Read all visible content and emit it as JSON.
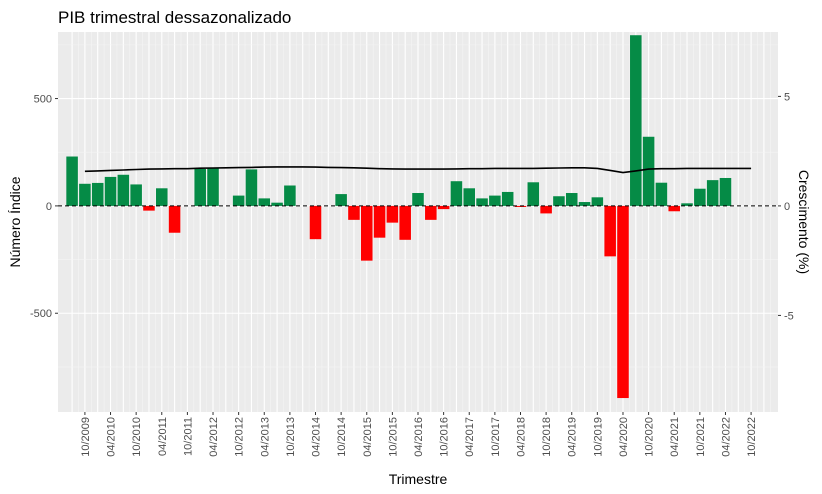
{
  "chart_data": {
    "type": "bar",
    "title": "PIB trimestral dessazonalizado",
    "xlabel": "Trimestre",
    "ylabel": "Número Índice",
    "ylabel_right": "Crescimento (%)",
    "ylim": [
      -960,
      810
    ],
    "ylim_right": [
      -9.41,
      7.94
    ],
    "yticks": [
      -500,
      0,
      500
    ],
    "yticks_right": [
      -5,
      0,
      5
    ],
    "grid": true,
    "legend": "none",
    "x": [
      "2009-Q3",
      "2009-Q4",
      "2010-Q1",
      "2010-Q2",
      "2010-Q3",
      "2010-Q4",
      "2011-Q1",
      "2011-Q2",
      "2011-Q3",
      "2011-Q4",
      "2012-Q1",
      "2012-Q2",
      "2012-Q3",
      "2012-Q4",
      "2013-Q1",
      "2013-Q2",
      "2013-Q3",
      "2013-Q4",
      "2014-Q1",
      "2014-Q2",
      "2014-Q3",
      "2014-Q4",
      "2015-Q1",
      "2015-Q2",
      "2015-Q3",
      "2015-Q4",
      "2016-Q1",
      "2016-Q2",
      "2016-Q3",
      "2016-Q4",
      "2017-Q1",
      "2017-Q2",
      "2017-Q3",
      "2017-Q4",
      "2018-Q1",
      "2018-Q2",
      "2018-Q3",
      "2018-Q4",
      "2019-Q1",
      "2019-Q2",
      "2019-Q3",
      "2019-Q4",
      "2020-Q1",
      "2020-Q2",
      "2020-Q3",
      "2020-Q4",
      "2021-Q1",
      "2021-Q2",
      "2021-Q3",
      "2021-Q4",
      "2022-Q1",
      "2022-Q2",
      "2022-Q3",
      "2022-Q4",
      "2023-Q1"
    ],
    "tick_labels": [
      "10/2009",
      "04/2010",
      "10/2010",
      "04/2011",
      "10/2011",
      "04/2012",
      "10/2012",
      "04/2013",
      "10/2013",
      "04/2014",
      "10/2014",
      "04/2015",
      "10/2015",
      "04/2016",
      "10/2016",
      "04/2017",
      "10/2017",
      "04/2018",
      "10/2018",
      "04/2019",
      "10/2019",
      "04/2020",
      "10/2020",
      "04/2021",
      "10/2021",
      "04/2022",
      "10/2022"
    ],
    "tick_positions": [
      "2009-Q4",
      "2010-Q2",
      "2010-Q4",
      "2011-Q2",
      "2011-Q4",
      "2012-Q2",
      "2012-Q4",
      "2013-Q2",
      "2013-Q4",
      "2014-Q2",
      "2014-Q4",
      "2015-Q2",
      "2015-Q4",
      "2016-Q2",
      "2016-Q4",
      "2017-Q2",
      "2017-Q4",
      "2018-Q2",
      "2018-Q4",
      "2019-Q2",
      "2019-Q4",
      "2020-Q2",
      "2020-Q4",
      "2021-Q2",
      "2021-Q4",
      "2022-Q2",
      "2022-Q4"
    ],
    "bars": {
      "x": [
        "2009-Q3",
        "2009-Q4",
        "2010-Q1",
        "2010-Q2",
        "2010-Q3",
        "2010-Q4",
        "2011-Q1",
        "2011-Q2",
        "2011-Q3",
        "2011-Q4",
        "2012-Q1",
        "2012-Q2",
        "2012-Q3",
        "2012-Q4",
        "2013-Q1",
        "2013-Q2",
        "2013-Q3",
        "2013-Q4",
        "2014-Q1",
        "2014-Q2",
        "2014-Q3",
        "2014-Q4",
        "2015-Q1",
        "2015-Q2",
        "2015-Q3",
        "2015-Q4",
        "2016-Q1",
        "2016-Q2",
        "2016-Q3",
        "2016-Q4",
        "2017-Q1",
        "2017-Q2",
        "2017-Q3",
        "2017-Q4",
        "2018-Q1",
        "2018-Q2",
        "2018-Q3",
        "2018-Q4",
        "2019-Q1",
        "2019-Q2",
        "2019-Q3",
        "2019-Q4",
        "2020-Q1",
        "2020-Q2",
        "2020-Q3",
        "2020-Q4",
        "2021-Q1",
        "2021-Q2",
        "2021-Q3",
        "2021-Q4",
        "2022-Q1",
        "2022-Q2"
      ],
      "values": [
        230,
        103,
        107,
        135,
        145,
        100,
        -22,
        82,
        -125,
        0,
        172,
        178,
        0,
        48,
        170,
        35,
        15,
        95,
        0,
        -155,
        0,
        55,
        -65,
        -255,
        -148,
        -78,
        -158,
        60,
        -65,
        -15,
        115,
        82,
        35,
        48,
        65,
        -5,
        110,
        -35,
        45,
        60,
        18,
        40,
        -235,
        -895,
        795,
        322,
        108,
        -25,
        12,
        80,
        120,
        130
      ],
      "color_positive": "#058B46",
      "color_negative": "#FF0000"
    },
    "growth_line": {
      "x": [
        "2009-Q4",
        "2010-Q1",
        "2010-Q2",
        "2010-Q3",
        "2010-Q4",
        "2011-Q1",
        "2011-Q2",
        "2011-Q3",
        "2011-Q4",
        "2012-Q1",
        "2012-Q2",
        "2012-Q3",
        "2012-Q4",
        "2013-Q1",
        "2013-Q2",
        "2013-Q3",
        "2013-Q4",
        "2014-Q1",
        "2014-Q2",
        "2014-Q3",
        "2014-Q4",
        "2015-Q1",
        "2015-Q2",
        "2015-Q3",
        "2015-Q4",
        "2016-Q1",
        "2016-Q2",
        "2016-Q3",
        "2016-Q4",
        "2017-Q1",
        "2017-Q2",
        "2017-Q3",
        "2017-Q4",
        "2018-Q1",
        "2018-Q2",
        "2018-Q3",
        "2018-Q4",
        "2019-Q1",
        "2019-Q2",
        "2019-Q3",
        "2019-Q4",
        "2020-Q1",
        "2020-Q2",
        "2020-Q3",
        "2020-Q4",
        "2021-Q1",
        "2021-Q2",
        "2021-Q3",
        "2021-Q4",
        "2022-Q1",
        "2022-Q2",
        "2022-Q3",
        "2022-Q4"
      ],
      "values": [
        1.58,
        1.6,
        1.62,
        1.64,
        1.66,
        1.68,
        1.69,
        1.7,
        1.7,
        1.72,
        1.73,
        1.74,
        1.75,
        1.76,
        1.77,
        1.78,
        1.78,
        1.78,
        1.77,
        1.76,
        1.75,
        1.74,
        1.72,
        1.7,
        1.69,
        1.68,
        1.68,
        1.68,
        1.68,
        1.69,
        1.7,
        1.7,
        1.71,
        1.71,
        1.71,
        1.71,
        1.72,
        1.73,
        1.74,
        1.74,
        1.71,
        1.62,
        1.52,
        1.6,
        1.68,
        1.7,
        1.7,
        1.71,
        1.71,
        1.71,
        1.71,
        1.71,
        1.71
      ],
      "color": "#000000"
    },
    "zero_line": {
      "value": 0,
      "style": "dashed"
    }
  }
}
